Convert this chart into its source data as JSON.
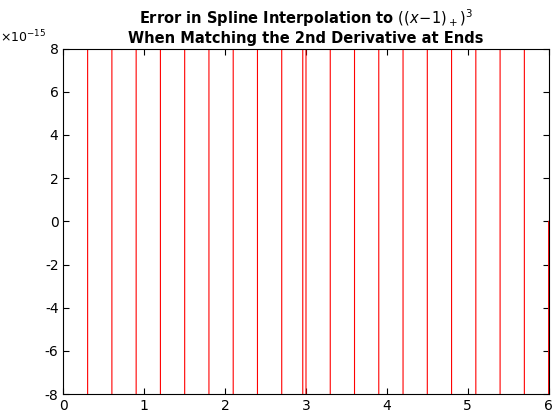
{
  "title_line1": "Error in Spline Interpolation to $((x-1)_+)^3$",
  "title_line2": "When Matching the 2nd Derivative at Ends",
  "xlim": [
    0,
    6
  ],
  "ylim": [
    -8e-15,
    8e-15
  ],
  "line_color": "#ff0000",
  "background_color": "#ffffff",
  "n_knots": 21,
  "n_eval": 3000
}
